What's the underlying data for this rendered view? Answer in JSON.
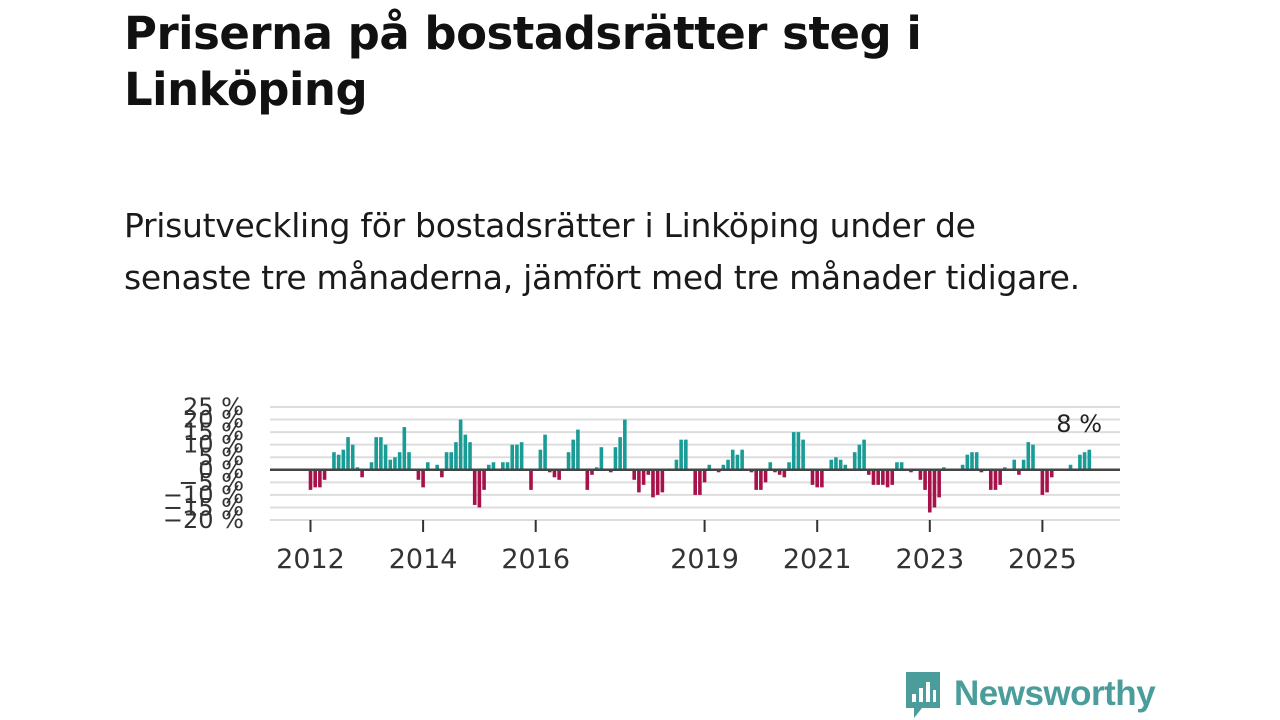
{
  "header": {
    "title": "Priserna på bostadsrätter steg i Linköping",
    "subtitle": "Prisutveckling för bostadsrätter i Linköping under de senaste tre månaderna, jämfört med tre månader tidigare."
  },
  "branding": {
    "logo_text": "Newsworthy",
    "logo_icon": "bar-chart-speech-bubble-icon",
    "logo_color": "#4a9d9b"
  },
  "colors": {
    "positive": "#1a9c96",
    "negative": "#a8124a",
    "gridline": "#dddddd",
    "zero_line": "#444444"
  },
  "chart_data": {
    "type": "bar",
    "title": "Priserna på bostadsrätter steg i Linköping",
    "xlabel": "",
    "ylabel": "",
    "unit": "%",
    "ylim": [
      -20,
      25
    ],
    "y_ticks": [
      25,
      20,
      15,
      10,
      5,
      0,
      -5,
      -10,
      -15,
      -20
    ],
    "y_tick_labels": [
      "25 %",
      "20 %",
      "15 %",
      "10 %",
      "5 %",
      "0 %",
      "−5 %",
      "−10 %",
      "−15 %",
      "−20 %"
    ],
    "x_ticks": [
      2012,
      2014,
      2016,
      2019,
      2021,
      2023,
      2025
    ],
    "x_tick_labels": [
      "2012",
      "2014",
      "2016",
      "2019",
      "2021",
      "2023",
      "2025"
    ],
    "x_start": 2012.0,
    "x_step_years": 0.08333,
    "grid": true,
    "last_value_label": "8 %",
    "values": [
      -8,
      -7,
      -7,
      -4,
      0,
      7,
      6,
      8,
      13,
      10,
      1,
      -3,
      0,
      3,
      13,
      13,
      10,
      4,
      5,
      7,
      17,
      7,
      0,
      -4,
      -7,
      3,
      0,
      2,
      -3,
      7,
      7,
      11,
      20,
      14,
      11,
      -14,
      -15,
      -8,
      2,
      3,
      0,
      3,
      3,
      10,
      10,
      11,
      0,
      -8,
      0,
      8,
      14,
      -1,
      -3,
      -4,
      0,
      7,
      12,
      16,
      0,
      -8,
      -2,
      1,
      9,
      0,
      -1,
      9,
      13,
      20,
      0,
      -4,
      -9,
      -6,
      -2,
      -11,
      -10,
      -9,
      0,
      0,
      4,
      12,
      12,
      0,
      -10,
      -10,
      -5,
      2,
      0,
      -1,
      2,
      4,
      8,
      6,
      8,
      0,
      -1,
      -8,
      -8,
      -5,
      3,
      -1,
      -2,
      -3,
      3,
      15,
      15,
      12,
      0,
      -6,
      -7,
      -7,
      0,
      4,
      5,
      4,
      2,
      0,
      7,
      10,
      12,
      -2,
      -6,
      -6,
      -6,
      -7,
      -6,
      3,
      3,
      0,
      -1,
      0,
      -4,
      -8,
      -17,
      -15,
      -11,
      1,
      0,
      0,
      0,
      2,
      6,
      7,
      7,
      -1,
      0,
      -8,
      -8,
      -6,
      1,
      0,
      4,
      -2,
      4,
      11,
      10,
      0,
      -10,
      -9,
      -3,
      0,
      0,
      0,
      2,
      0,
      6,
      7,
      8
    ]
  }
}
